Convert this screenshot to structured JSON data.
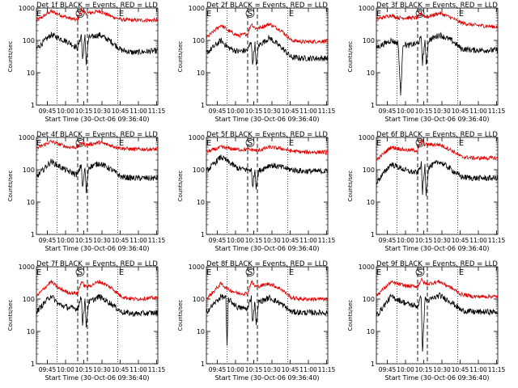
{
  "chart_data": {
    "type": "line",
    "layout": "3x3 grid",
    "xlabel": "Start Time (30-Oct-06 09:36:40)",
    "ylabel": "Counts/sec",
    "y_scale": "log",
    "ylim": [
      1,
      1000
    ],
    "y_tick_labels": [
      "1",
      "10",
      "100",
      "1000"
    ],
    "x_tick_labels": [
      "09:45",
      "10:00",
      "10:15",
      "10:30",
      "10:45",
      "11:00",
      "11:15"
    ],
    "xlim_minutes_after_0936": [
      0,
      100
    ],
    "series_legend": {
      "black": "Events",
      "red": "LLD"
    },
    "colors": {
      "events": "#000000",
      "lld": "#e00000",
      "axis": "#000000"
    },
    "markers": [
      "E",
      "S",
      "E"
    ],
    "panels": [
      {
        "title": "Det 1f  BLACK = Events, RED = LLD",
        "events": [
          [
            0,
            55
          ],
          [
            12,
            150
          ],
          [
            26,
            90
          ],
          [
            34,
            58
          ],
          [
            37,
            150
          ],
          [
            38,
            25
          ],
          [
            40,
            130
          ],
          [
            41,
            20
          ],
          [
            43,
            120
          ],
          [
            52,
            150
          ],
          [
            62,
            90
          ],
          [
            70,
            50
          ],
          [
            80,
            42
          ],
          [
            100,
            48
          ]
        ],
        "lld": [
          [
            0,
            400
          ],
          [
            12,
            800
          ],
          [
            26,
            500
          ],
          [
            34,
            420
          ],
          [
            37,
            900
          ],
          [
            40,
            700
          ],
          [
            43,
            700
          ],
          [
            52,
            800
          ],
          [
            62,
            550
          ],
          [
            70,
            440
          ],
          [
            80,
            420
          ],
          [
            100,
            420
          ]
        ]
      },
      {
        "title": "Det 2f  BLACK = Events, RED = LLD",
        "events": [
          [
            0,
            40
          ],
          [
            12,
            100
          ],
          [
            18,
            60
          ],
          [
            26,
            45
          ],
          [
            34,
            50
          ],
          [
            37,
            100
          ],
          [
            38,
            18
          ],
          [
            40,
            80
          ],
          [
            41,
            15
          ],
          [
            43,
            70
          ],
          [
            52,
            120
          ],
          [
            62,
            60
          ],
          [
            70,
            30
          ],
          [
            80,
            28
          ],
          [
            100,
            28
          ]
        ],
        "lld": [
          [
            0,
            120
          ],
          [
            12,
            300
          ],
          [
            18,
            200
          ],
          [
            26,
            140
          ],
          [
            34,
            160
          ],
          [
            37,
            330
          ],
          [
            40,
            240
          ],
          [
            43,
            240
          ],
          [
            52,
            320
          ],
          [
            62,
            200
          ],
          [
            70,
            100
          ],
          [
            80,
            90
          ],
          [
            100,
            95
          ]
        ]
      },
      {
        "title": "Det 3f  BLACK = Events, RED = LLD",
        "events": [
          [
            0,
            60
          ],
          [
            12,
            100
          ],
          [
            18,
            80
          ],
          [
            20,
            2
          ],
          [
            22,
            80
          ],
          [
            26,
            70
          ],
          [
            34,
            80
          ],
          [
            37,
            120
          ],
          [
            38,
            20
          ],
          [
            40,
            100
          ],
          [
            41,
            18
          ],
          [
            43,
            100
          ],
          [
            52,
            150
          ],
          [
            62,
            100
          ],
          [
            70,
            55
          ],
          [
            80,
            50
          ],
          [
            100,
            50
          ]
        ],
        "lld": [
          [
            0,
            450
          ],
          [
            12,
            600
          ],
          [
            18,
            500
          ],
          [
            26,
            500
          ],
          [
            34,
            500
          ],
          [
            37,
            700
          ],
          [
            40,
            550
          ],
          [
            43,
            550
          ],
          [
            52,
            700
          ],
          [
            62,
            500
          ],
          [
            70,
            350
          ],
          [
            80,
            300
          ],
          [
            100,
            260
          ]
        ]
      },
      {
        "title": "Det 4f  BLACK = Events, RED = LLD",
        "events": [
          [
            0,
            60
          ],
          [
            12,
            180
          ],
          [
            26,
            90
          ],
          [
            34,
            70
          ],
          [
            37,
            150
          ],
          [
            38,
            25
          ],
          [
            40,
            120
          ],
          [
            41,
            20
          ],
          [
            43,
            120
          ],
          [
            52,
            160
          ],
          [
            62,
            100
          ],
          [
            70,
            60
          ],
          [
            80,
            55
          ],
          [
            100,
            55
          ]
        ],
        "lld": [
          [
            0,
            450
          ],
          [
            12,
            750
          ],
          [
            26,
            500
          ],
          [
            34,
            500
          ],
          [
            37,
            700
          ],
          [
            40,
            600
          ],
          [
            43,
            600
          ],
          [
            52,
            700
          ],
          [
            62,
            550
          ],
          [
            70,
            460
          ],
          [
            80,
            430
          ],
          [
            100,
            430
          ]
        ]
      },
      {
        "title": "Det 5f  BLACK = Events, RED = LLD",
        "events": [
          [
            0,
            90
          ],
          [
            12,
            250
          ],
          [
            26,
            110
          ],
          [
            34,
            100
          ],
          [
            37,
            100
          ],
          [
            38,
            30
          ],
          [
            40,
            100
          ],
          [
            41,
            30
          ],
          [
            43,
            90
          ],
          [
            52,
            140
          ],
          [
            62,
            120
          ],
          [
            70,
            100
          ],
          [
            80,
            90
          ],
          [
            100,
            90
          ]
        ],
        "lld": [
          [
            0,
            350
          ],
          [
            12,
            500
          ],
          [
            26,
            420
          ],
          [
            34,
            420
          ],
          [
            37,
            420
          ],
          [
            40,
            400
          ],
          [
            43,
            400
          ],
          [
            52,
            500
          ],
          [
            62,
            450
          ],
          [
            70,
            380
          ],
          [
            80,
            350
          ],
          [
            100,
            350
          ]
        ]
      },
      {
        "title": "Det 6f  BLACK = Events, RED = LLD",
        "events": [
          [
            0,
            40
          ],
          [
            12,
            150
          ],
          [
            26,
            90
          ],
          [
            34,
            80
          ],
          [
            37,
            150
          ],
          [
            38,
            20
          ],
          [
            40,
            130
          ],
          [
            41,
            18
          ],
          [
            43,
            120
          ],
          [
            52,
            180
          ],
          [
            62,
            100
          ],
          [
            70,
            60
          ],
          [
            80,
            55
          ],
          [
            100,
            55
          ]
        ],
        "lld": [
          [
            0,
            200
          ],
          [
            12,
            500
          ],
          [
            26,
            400
          ],
          [
            34,
            400
          ],
          [
            37,
            800
          ],
          [
            40,
            600
          ],
          [
            43,
            600
          ],
          [
            52,
            600
          ],
          [
            62,
            400
          ],
          [
            70,
            250
          ],
          [
            80,
            230
          ],
          [
            100,
            230
          ]
        ]
      },
      {
        "title": "Det 7f  BLACK = Events, RED = LLD",
        "events": [
          [
            0,
            40
          ],
          [
            12,
            130
          ],
          [
            18,
            70
          ],
          [
            26,
            55
          ],
          [
            34,
            50
          ],
          [
            37,
            120
          ],
          [
            38,
            18
          ],
          [
            40,
            90
          ],
          [
            41,
            15
          ],
          [
            43,
            80
          ],
          [
            52,
            120
          ],
          [
            62,
            70
          ],
          [
            70,
            40
          ],
          [
            80,
            35
          ],
          [
            100,
            38
          ]
        ],
        "lld": [
          [
            0,
            120
          ],
          [
            12,
            350
          ],
          [
            18,
            220
          ],
          [
            26,
            160
          ],
          [
            34,
            150
          ],
          [
            37,
            350
          ],
          [
            40,
            250
          ],
          [
            43,
            250
          ],
          [
            52,
            350
          ],
          [
            62,
            220
          ],
          [
            70,
            120
          ],
          [
            80,
            100
          ],
          [
            100,
            110
          ]
        ]
      },
      {
        "title": "Det 8f  BLACK = Events, RED = LLD",
        "events": [
          [
            0,
            40
          ],
          [
            12,
            120
          ],
          [
            16,
            110
          ],
          [
            17,
            3
          ],
          [
            18,
            100
          ],
          [
            26,
            55
          ],
          [
            34,
            50
          ],
          [
            37,
            120
          ],
          [
            38,
            18
          ],
          [
            40,
            90
          ],
          [
            41,
            15
          ],
          [
            43,
            80
          ],
          [
            52,
            110
          ],
          [
            62,
            70
          ],
          [
            70,
            40
          ],
          [
            80,
            38
          ],
          [
            100,
            38
          ]
        ],
        "lld": [
          [
            0,
            100
          ],
          [
            12,
            300
          ],
          [
            18,
            200
          ],
          [
            26,
            150
          ],
          [
            34,
            150
          ],
          [
            37,
            350
          ],
          [
            40,
            250
          ],
          [
            43,
            250
          ],
          [
            52,
            300
          ],
          [
            62,
            200
          ],
          [
            70,
            110
          ],
          [
            80,
            100
          ],
          [
            100,
            100
          ]
        ]
      },
      {
        "title": "Det 9f  BLACK = Events, RED = LLD",
        "events": [
          [
            0,
            30
          ],
          [
            12,
            120
          ],
          [
            26,
            70
          ],
          [
            34,
            60
          ],
          [
            37,
            120
          ],
          [
            38,
            2
          ],
          [
            40,
            100
          ],
          [
            43,
            90
          ],
          [
            52,
            130
          ],
          [
            62,
            80
          ],
          [
            70,
            45
          ],
          [
            80,
            40
          ],
          [
            100,
            40
          ]
        ],
        "lld": [
          [
            0,
            130
          ],
          [
            12,
            330
          ],
          [
            26,
            250
          ],
          [
            34,
            250
          ],
          [
            37,
            400
          ],
          [
            40,
            300
          ],
          [
            43,
            300
          ],
          [
            52,
            350
          ],
          [
            62,
            220
          ],
          [
            70,
            140
          ],
          [
            80,
            120
          ],
          [
            100,
            120
          ]
        ]
      }
    ]
  }
}
